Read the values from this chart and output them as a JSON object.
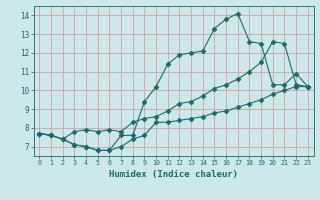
{
  "xlabel": "Humidex (Indice chaleur)",
  "background_color": "#cce8e8",
  "grid_color": "#d4a0a0",
  "line_color": "#1a6b6b",
  "xlim": [
    -0.5,
    23.5
  ],
  "ylim": [
    6.5,
    14.5
  ],
  "xticks": [
    0,
    1,
    2,
    3,
    4,
    5,
    6,
    7,
    8,
    9,
    10,
    11,
    12,
    13,
    14,
    15,
    16,
    17,
    18,
    19,
    20,
    21,
    22,
    23
  ],
  "yticks": [
    7,
    8,
    9,
    10,
    11,
    12,
    13,
    14
  ],
  "line1_x": [
    0,
    1,
    2,
    3,
    4,
    5,
    6,
    7,
    8,
    9,
    10,
    11,
    12,
    13,
    14,
    15,
    16,
    17,
    18,
    19,
    20,
    21,
    22,
    23
  ],
  "line1_y": [
    7.7,
    7.6,
    7.4,
    7.1,
    7.0,
    6.8,
    6.8,
    7.0,
    7.4,
    7.6,
    8.3,
    8.3,
    8.4,
    8.5,
    8.6,
    8.8,
    8.9,
    9.1,
    9.3,
    9.5,
    9.8,
    10.0,
    10.2,
    10.2
  ],
  "line2_x": [
    0,
    1,
    2,
    3,
    4,
    5,
    6,
    7,
    8,
    9,
    10,
    11,
    12,
    13,
    14,
    15,
    16,
    17,
    18,
    19,
    20,
    21,
    22,
    23
  ],
  "line2_y": [
    7.7,
    7.6,
    7.4,
    7.1,
    7.0,
    6.8,
    6.8,
    7.6,
    7.6,
    9.4,
    10.2,
    11.4,
    11.9,
    12.0,
    12.1,
    13.3,
    13.8,
    14.1,
    12.6,
    12.5,
    10.3,
    10.3,
    10.9,
    10.2
  ],
  "line3_x": [
    0,
    1,
    2,
    3,
    4,
    5,
    6,
    7,
    8,
    9,
    10,
    11,
    12,
    13,
    14,
    15,
    16,
    17,
    18,
    19,
    20,
    21,
    22,
    23
  ],
  "line3_y": [
    7.7,
    7.6,
    7.4,
    7.8,
    7.9,
    7.8,
    7.9,
    7.8,
    8.3,
    8.5,
    8.6,
    8.9,
    9.3,
    9.4,
    9.7,
    10.1,
    10.3,
    10.6,
    11.0,
    11.5,
    12.6,
    12.5,
    10.3,
    10.2
  ]
}
